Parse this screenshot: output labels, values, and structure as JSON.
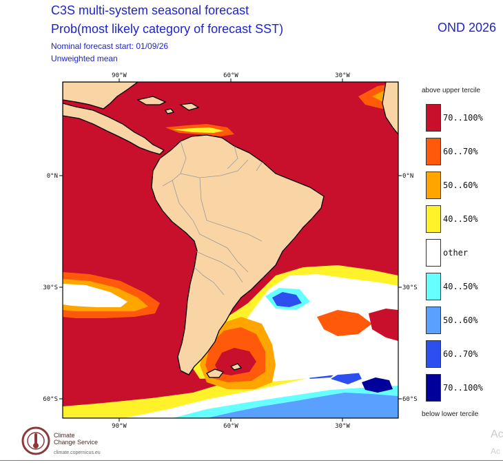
{
  "header": {
    "title": "C3S multi-system seasonal forecast",
    "subtitle": "Prob(most likely category of forecast SST)",
    "forecast_start": "Nominal forecast start: 01/09/26",
    "mean_type": "Unweighted mean",
    "season": "OND 2026"
  },
  "map": {
    "longitude_ticks": [
      "90°W",
      "60°W",
      "30°W"
    ],
    "latitude_ticks": [
      "0°N",
      "30°S",
      "60°S"
    ],
    "colors": {
      "land": "#f9d5a6",
      "ocean_default": "#c80f2c",
      "above_70_100": "#c80f2c",
      "above_60_70": "#ff5a0a",
      "above_50_60": "#ffa500",
      "above_40_50": "#fff22a",
      "other": "#ffffff",
      "below_40_50": "#66ffff",
      "below_50_60": "#5aa0ff",
      "below_60_70": "#2d4ff0",
      "below_70_100": "#02009a"
    }
  },
  "legend": {
    "top_label": "above upper tercile",
    "bottom_label": "below lower tercile",
    "items": [
      {
        "label": "70..100%",
        "color": "#c80f2c"
      },
      {
        "label": "60..70%",
        "color": "#ff5a0a"
      },
      {
        "label": "50..60%",
        "color": "#ffa500"
      },
      {
        "label": "40..50%",
        "color": "#fff22a"
      },
      {
        "label": "other",
        "color": "#ffffff"
      },
      {
        "label": "40..50%",
        "color": "#66ffff"
      },
      {
        "label": "50..60%",
        "color": "#5aa0ff"
      },
      {
        "label": "60..70%",
        "color": "#2d4ff0"
      },
      {
        "label": "70..100%",
        "color": "#02009a"
      }
    ]
  },
  "logo": {
    "line1": "Climate",
    "line2": "Change Service",
    "url": "climate.copernicus.eu"
  },
  "watermark": {
    "line1": "Ac",
    "line2": "Ac"
  }
}
